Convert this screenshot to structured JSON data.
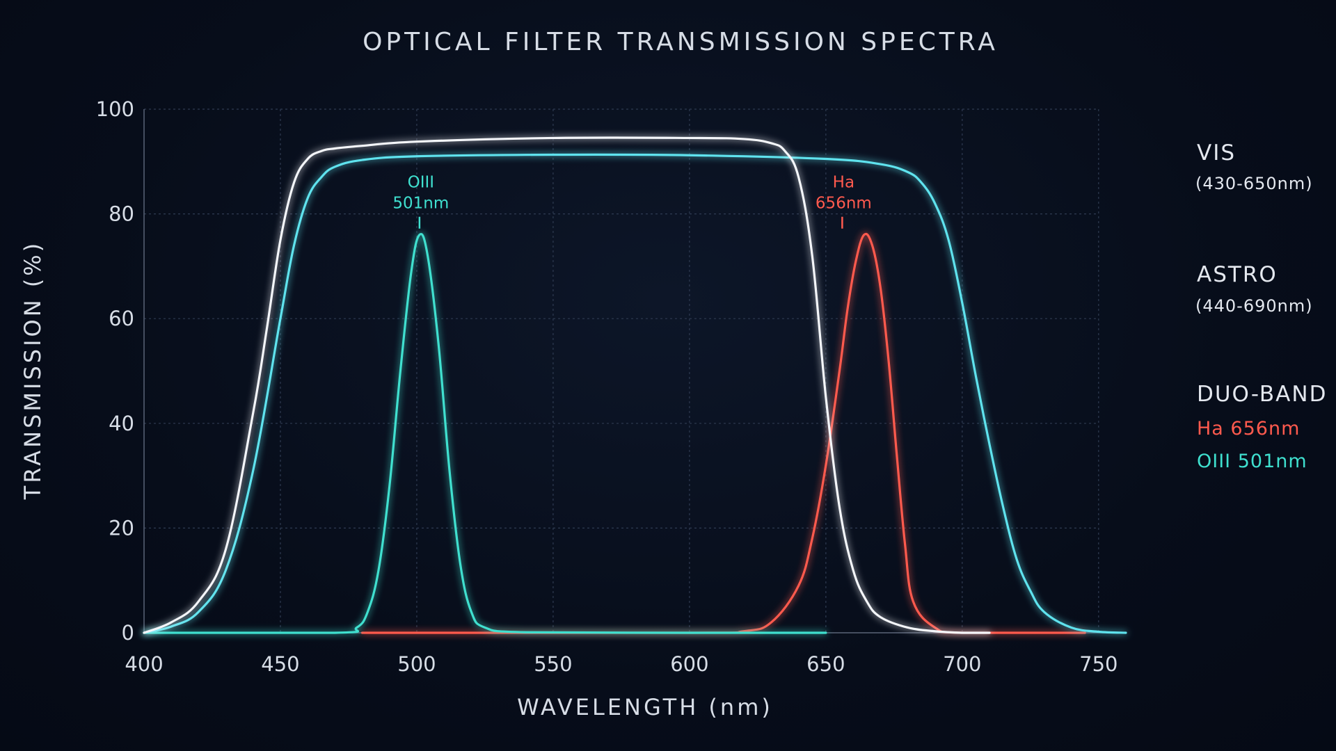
{
  "chart_data": {
    "type": "line",
    "title": "OPTICAL FILTER TRANSMISSION SPECTRA",
    "xlabel": "WAVELENGTH (nm)",
    "ylabel": "TRANSMISSION (%)",
    "xlim": [
      400,
      760
    ],
    "ylim": [
      0,
      100
    ],
    "x_ticks": [
      "400",
      "450",
      "500",
      "550",
      "600",
      "650",
      "700",
      "750"
    ],
    "y_ticks": [
      "0",
      "20",
      "40",
      "60",
      "80",
      "100"
    ],
    "grid": true,
    "legend_position": "right",
    "series": [
      {
        "name": "VIS",
        "range_label": "(430-650nm)",
        "color": "#f4f6fa",
        "x": [
          400,
          410,
          420,
          430,
          440,
          445,
          450,
          455,
          460,
          465,
          470,
          480,
          500,
          550,
          600,
          620,
          630,
          635,
          640,
          645,
          650,
          655,
          660,
          665,
          670,
          680,
          690,
          700,
          710
        ],
        "y": [
          0,
          2,
          6,
          16,
          42,
          58,
          75,
          86,
          90.5,
          92,
          92.5,
          93,
          93.8,
          94.5,
          94.5,
          94.3,
          93.5,
          92,
          87,
          72,
          45,
          24,
          12,
          6,
          3,
          1,
          0.3,
          0,
          0
        ]
      },
      {
        "name": "ASTRO",
        "range_label": "(440-690nm)",
        "color": "#5fe3ee",
        "x": [
          400,
          410,
          420,
          430,
          440,
          450,
          455,
          460,
          465,
          470,
          480,
          500,
          550,
          600,
          650,
          670,
          680,
          685,
          690,
          695,
          700,
          705,
          710,
          715,
          720,
          725,
          730,
          740,
          750,
          760
        ],
        "y": [
          0,
          1.2,
          4,
          12,
          31,
          60,
          74,
          83,
          87,
          89,
          90.3,
          91,
          91.3,
          91.2,
          90.5,
          89.5,
          88,
          86,
          82,
          75,
          63,
          49,
          36,
          24,
          14,
          8,
          4,
          1,
          0.2,
          0
        ]
      },
      {
        "name": "Ha 656nm",
        "color": "#ff5a4e",
        "x": [
          480,
          600,
          620,
          630,
          640,
          645,
          650,
          655,
          658,
          661,
          664,
          667,
          670,
          673,
          676,
          679,
          682,
          690,
          700,
          745
        ],
        "y": [
          0,
          0,
          0.3,
          2,
          9,
          18,
          32,
          50,
          62,
          71,
          76,
          74,
          66,
          52,
          34,
          17,
          6,
          1,
          0,
          0
        ]
      },
      {
        "name": "OIII 501nm",
        "color": "#3fe0cf",
        "x": [
          400,
          470,
          478,
          482,
          486,
          490,
          494,
          498,
          501,
          504,
          508,
          512,
          516,
          520,
          525,
          540,
          600,
          650
        ],
        "y": [
          0,
          0,
          1,
          4,
          12,
          28,
          50,
          69,
          76,
          72,
          55,
          31,
          13,
          4,
          1,
          0.1,
          0,
          0
        ]
      }
    ],
    "legend": [
      {
        "name": "VIS",
        "sub": "(430-650nm)"
      },
      {
        "name": "ASTRO",
        "sub": "(440-690nm)"
      },
      {
        "name": "DUO-BAND",
        "sub1": "Ha 656nm",
        "sub2": "OIII 501nm"
      }
    ],
    "annotations": [
      {
        "line1": "OIII",
        "line2": "501nm",
        "x": 501,
        "y": 76,
        "color": "#3fe0cf"
      },
      {
        "line1": "Ha",
        "line2": "656nm",
        "x": 656,
        "y": 76,
        "color": "#ff5a4e"
      }
    ]
  }
}
